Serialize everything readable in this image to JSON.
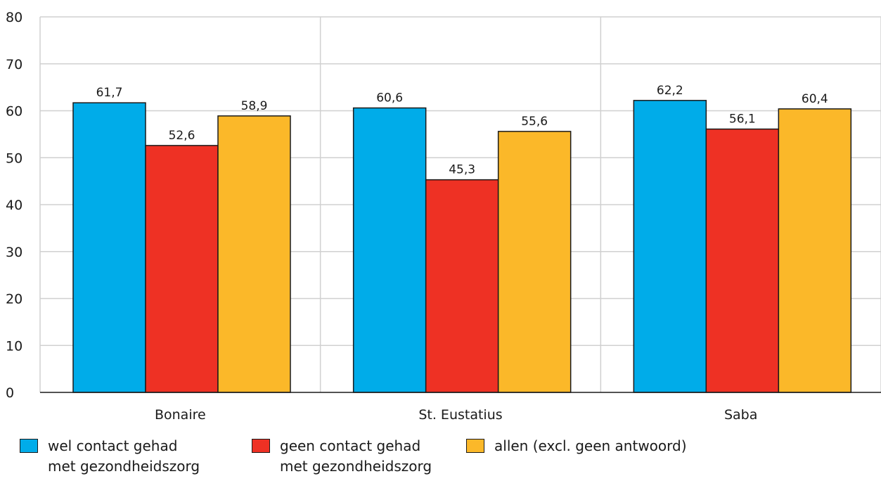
{
  "chart_data": {
    "type": "bar",
    "categories": [
      "Bonaire",
      "St. Eustatius",
      "Saba"
    ],
    "series": [
      {
        "name": "wel contact gehad\nmet gezondheidszorg",
        "color": "#00ace9",
        "values": [
          61.7,
          60.6,
          62.2
        ],
        "labels": [
          "61,7",
          "60,6",
          "62,2"
        ]
      },
      {
        "name": "geen contact gehad\nmet gezondheidszorg",
        "color": "#ee3124",
        "values": [
          52.6,
          45.3,
          56.1
        ],
        "labels": [
          "52,6",
          "45,3",
          "56,1"
        ]
      },
      {
        "name": "allen (excl. geen antwoord)",
        "color": "#fbb829",
        "values": [
          58.9,
          55.6,
          60.4
        ],
        "labels": [
          "58,9",
          "55,6",
          "60,4"
        ]
      }
    ],
    "yticks": [
      "0",
      "10",
      "20",
      "30",
      "40",
      "50",
      "60",
      "70",
      "80"
    ],
    "ylim": [
      0,
      80
    ],
    "grid": true,
    "legend": "bottom"
  }
}
